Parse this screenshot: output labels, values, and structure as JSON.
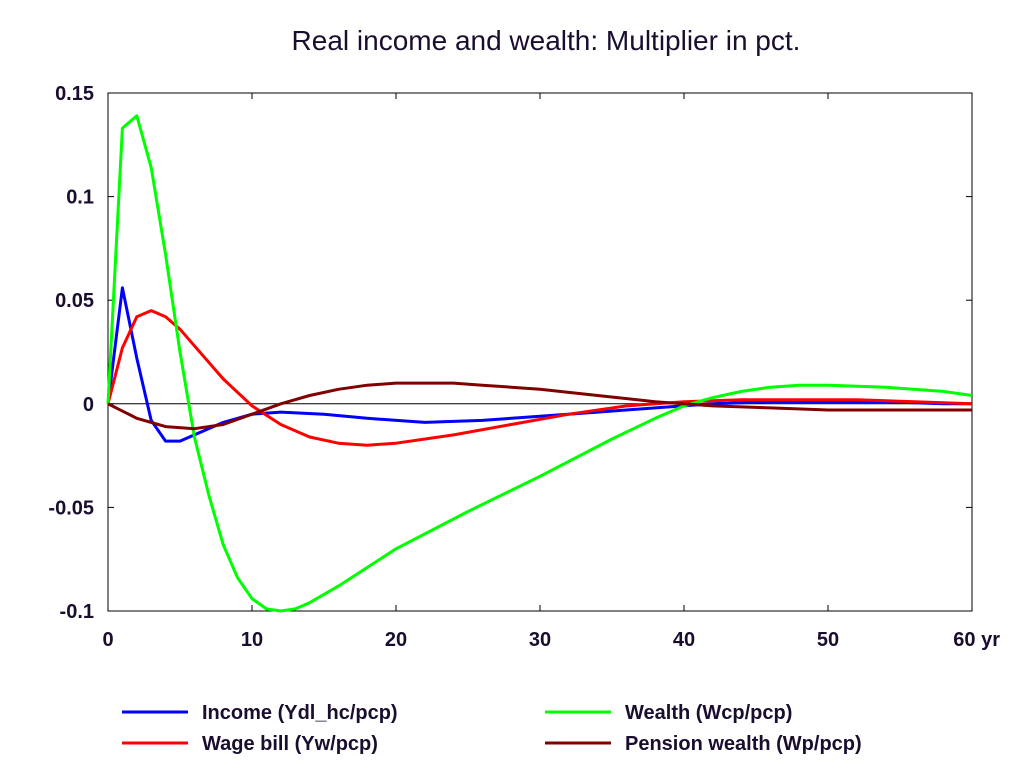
{
  "chart_data": {
    "type": "line",
    "title": "Real income and wealth: Multiplier in pct.",
    "x_unit": "yr",
    "xlim": [
      0,
      60
    ],
    "ylim": [
      -0.1,
      0.15
    ],
    "x_ticks": [
      0,
      10,
      20,
      30,
      40,
      50,
      60
    ],
    "x_tick_labels": [
      "0",
      "10",
      "20",
      "30",
      "40",
      "50",
      "60 yr"
    ],
    "y_ticks": [
      0.15,
      0.1,
      0.05,
      0,
      -0.05,
      -0.1
    ],
    "y_tick_labels": [
      "0.15",
      "0.1",
      "0.05",
      "0",
      "-0.05",
      "-0.1"
    ],
    "zero_line": true,
    "grid": false,
    "legend_position": "bottom",
    "series": [
      {
        "name": "Income (Ydl_hc/pcp)",
        "color": "#0000ff",
        "x": [
          0,
          1,
          2,
          3,
          4,
          5,
          6,
          8,
          10,
          12,
          15,
          18,
          22,
          26,
          30,
          34,
          38,
          42,
          46,
          50,
          54,
          58,
          60
        ],
        "y": [
          0,
          0.056,
          0.022,
          -0.008,
          -0.018,
          -0.018,
          -0.015,
          -0.009,
          -0.005,
          -0.004,
          -0.005,
          -0.007,
          -0.009,
          -0.008,
          -0.006,
          -0.004,
          -0.002,
          0.0,
          0.001,
          0.001,
          0.001,
          0.0,
          0.0
        ]
      },
      {
        "name": "Wage bill (Yw/pcp)",
        "color": "#ff0000",
        "x": [
          0,
          1,
          2,
          3,
          4,
          5,
          6,
          8,
          10,
          12,
          14,
          16,
          18,
          20,
          24,
          28,
          32,
          36,
          40,
          44,
          48,
          52,
          56,
          60
        ],
        "y": [
          0,
          0.027,
          0.042,
          0.045,
          0.042,
          0.036,
          0.028,
          0.012,
          -0.001,
          -0.01,
          -0.016,
          -0.019,
          -0.02,
          -0.019,
          -0.015,
          -0.01,
          -0.005,
          -0.001,
          0.001,
          0.002,
          0.002,
          0.002,
          0.001,
          0.0
        ]
      },
      {
        "name": "Wealth (Wcp/pcp)",
        "color": "#00ff00",
        "x": [
          0,
          1,
          2,
          3,
          4,
          5,
          6,
          7,
          8,
          9,
          10,
          11,
          12,
          13,
          14,
          16,
          18,
          20,
          25,
          30,
          35,
          38,
          40,
          42,
          44,
          46,
          48,
          50,
          54,
          58,
          60
        ],
        "y": [
          0,
          0.133,
          0.139,
          0.114,
          0.072,
          0.025,
          -0.016,
          -0.044,
          -0.068,
          -0.084,
          -0.094,
          -0.099,
          -0.1,
          -0.099,
          -0.096,
          -0.088,
          -0.079,
          -0.07,
          -0.052,
          -0.035,
          -0.017,
          -0.007,
          -0.001,
          0.003,
          0.006,
          0.008,
          0.009,
          0.009,
          0.008,
          0.006,
          0.004
        ]
      },
      {
        "name": "Pension wealth (Wp/pcp)",
        "color": "#800000",
        "x": [
          0,
          2,
          4,
          6,
          8,
          10,
          12,
          14,
          16,
          18,
          20,
          22,
          24,
          26,
          28,
          30,
          34,
          38,
          42,
          46,
          50,
          54,
          58,
          60
        ],
        "y": [
          0,
          -0.007,
          -0.011,
          -0.012,
          -0.01,
          -0.005,
          0.0,
          0.004,
          0.007,
          0.009,
          0.01,
          0.01,
          0.01,
          0.009,
          0.008,
          0.007,
          0.004,
          0.001,
          -0.001,
          -0.002,
          -0.003,
          -0.003,
          -0.003,
          -0.003
        ]
      }
    ]
  }
}
